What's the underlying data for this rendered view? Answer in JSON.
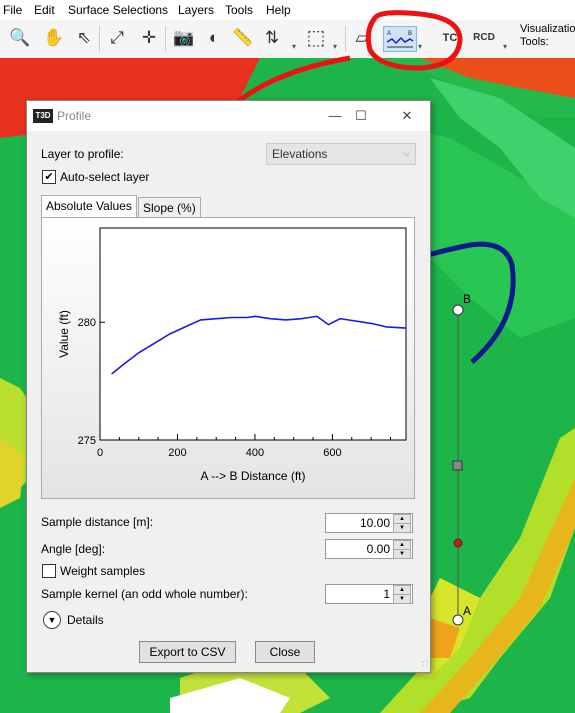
{
  "menu": [
    "File",
    "Edit",
    "Surface Selections",
    "Layers",
    "Tools",
    "Help"
  ],
  "toolbar": {
    "icons": [
      "zoom-icon",
      "pan-hand-icon",
      "select-arrow-icon",
      "zoom-extents-icon",
      "crosshair-icon",
      "camera-icon",
      "globe-icon",
      "ruler-icon",
      "north-arrow-icon",
      "rectangle-select-icon",
      "layer-tool-icon",
      "profile-icon",
      "tc-icon",
      "rcd-icon"
    ],
    "visualization_label": "Visualizatio Tools:",
    "tc_label": "TC",
    "rcd_label": "RCD"
  },
  "dialog": {
    "title": "Profile",
    "logo": "T3D",
    "layer_label": "Layer to profile:",
    "layer_value": "Elevations",
    "auto_select_label": "Auto-select layer",
    "auto_select_checked": true,
    "tabs": [
      "Absolute Values",
      "Slope (%)"
    ],
    "sample_distance_label": "Sample distance [m]:",
    "sample_distance_value": "10.00",
    "angle_label": "Angle [deg]:",
    "angle_value": "0.00",
    "weight_label": "Weight samples",
    "weight_checked": false,
    "kernel_label": "Sample kernel (an odd whole number):",
    "kernel_value": "1",
    "details_label": "Details",
    "export_label": "Export to CSV",
    "close_label": "Close"
  },
  "map_points": {
    "a": "A",
    "b": "B"
  },
  "colors": {
    "accent_red": "#ee1111",
    "accent_blue": "#0d1a8c",
    "line": "#1a1aee"
  },
  "chart_data": {
    "type": "line",
    "xlabel": "A --> B Distance (ft)",
    "ylabel": "Value (ft)",
    "xlim": [
      0,
      790
    ],
    "ylim": [
      275,
      284
    ],
    "xticks": [
      0,
      200,
      400,
      600
    ],
    "yticks": [
      275,
      280
    ],
    "x": [
      30,
      60,
      100,
      140,
      180,
      220,
      260,
      300,
      340,
      380,
      400,
      440,
      480,
      520,
      540,
      560,
      590,
      620,
      660,
      700,
      740,
      790
    ],
    "y": [
      277.8,
      278.2,
      278.7,
      279.1,
      279.5,
      279.8,
      280.1,
      280.15,
      280.2,
      280.2,
      280.25,
      280.15,
      280.1,
      280.15,
      280.2,
      280.25,
      279.9,
      280.15,
      280.05,
      279.95,
      279.8,
      279.75
    ]
  }
}
